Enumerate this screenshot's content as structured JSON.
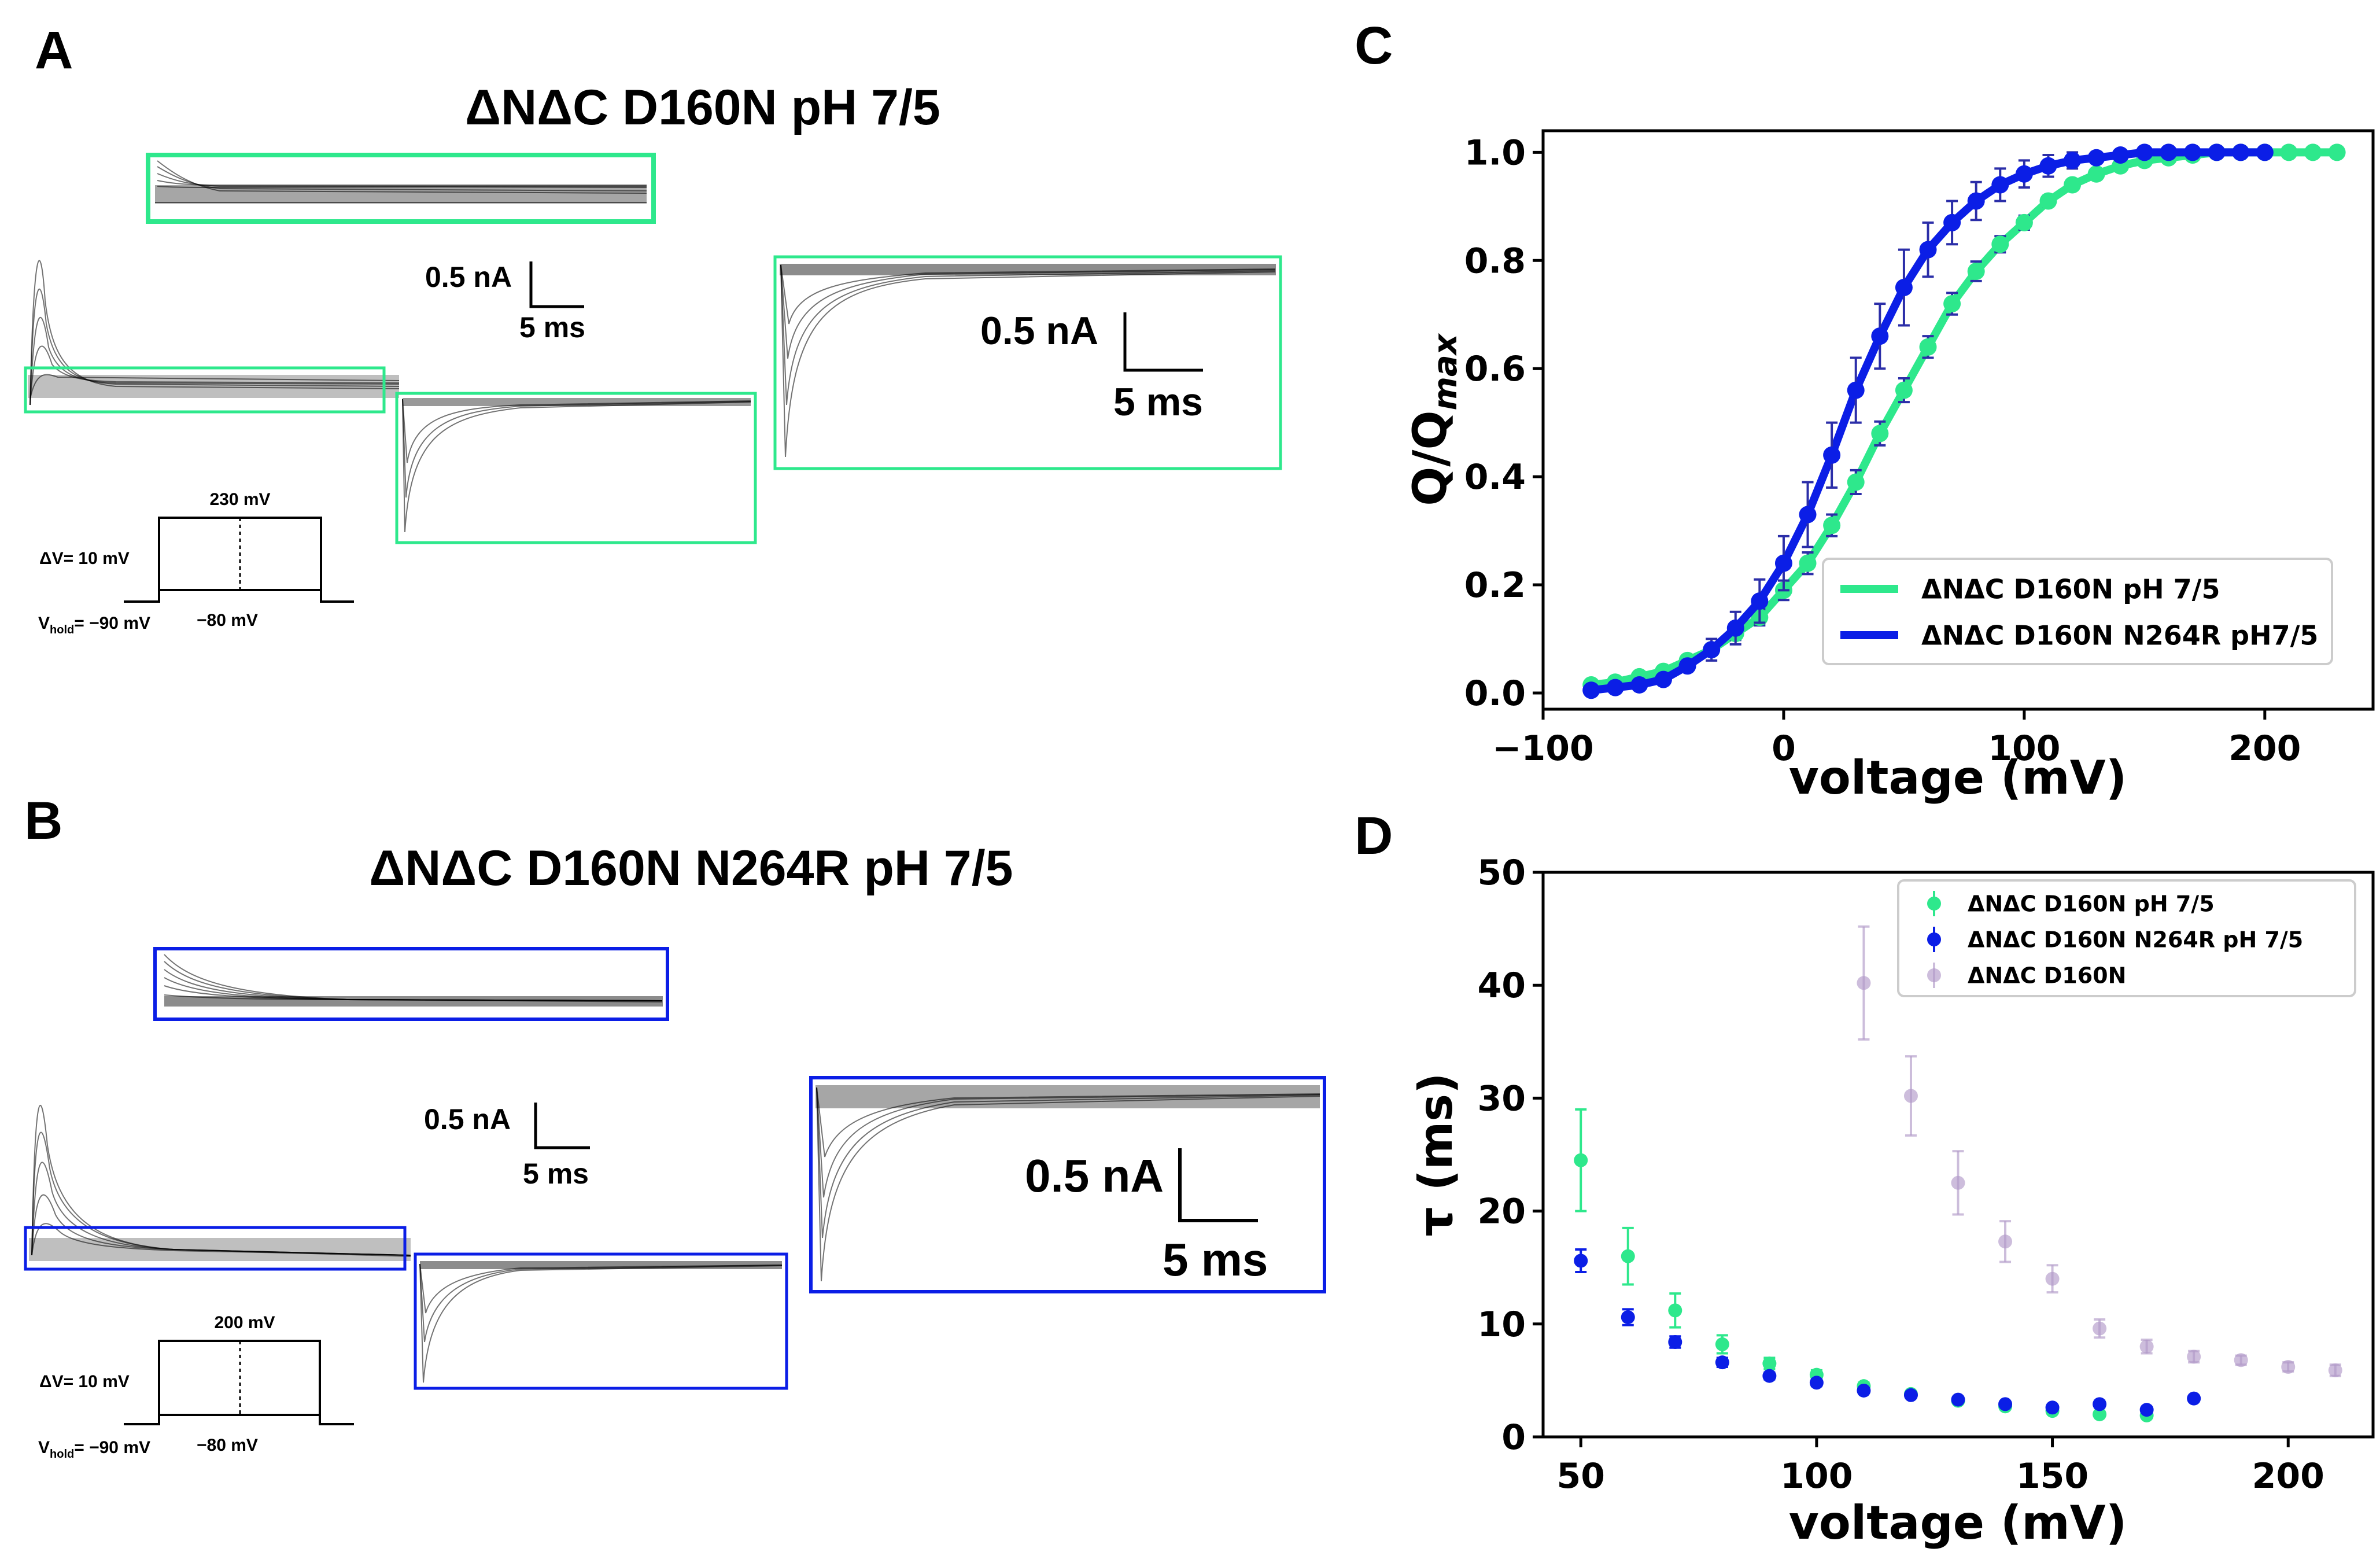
{
  "panel_labels": [
    "A",
    "B",
    "C",
    "D"
  ],
  "colors": {
    "green": "#2ee88c",
    "blue": "#0b1ee6",
    "purple": "#b29ac9",
    "black": "#000000"
  },
  "panel_a": {
    "title": "ΔNΔC D160N pH 7/5",
    "scale_small": {
      "current": "0.5 nA",
      "time": "5 ms"
    },
    "scale_large": {
      "current": "0.5 nA",
      "time": "5 ms"
    },
    "protocol": {
      "top": "230 mV",
      "step": "ΔV= 10 mV",
      "hold": "V",
      "hold_sub": "hold",
      "hold_val": "= −90 mV",
      "post": "−80 mV"
    }
  },
  "panel_b": {
    "title": "ΔNΔC D160N N264R pH 7/5",
    "scale_small": {
      "current": "0.5 nA",
      "time": "5 ms"
    },
    "scale_large": {
      "current": "0.5 nA",
      "time": "5 ms"
    },
    "protocol": {
      "top": "200 mV",
      "step": "ΔV= 10 mV",
      "hold": "V",
      "hold_sub": "hold",
      "hold_val": "= −90 mV",
      "post": "−80 mV"
    }
  },
  "chart_data": [
    {
      "panel": "C",
      "type": "line",
      "title": "",
      "xlabel": "voltage (mV)",
      "ylabel": "Q/Q",
      "ylabel_sub": "max",
      "xlim": [
        -100,
        245
      ],
      "ylim": [
        -0.03,
        1.04
      ],
      "xticks": [
        -100,
        0,
        100,
        200
      ],
      "xtick_labels": [
        "−100",
        "0",
        "100",
        "200"
      ],
      "yticks": [
        0.0,
        0.2,
        0.4,
        0.6,
        0.8,
        1.0
      ],
      "ytick_labels": [
        "0.0",
        "0.2",
        "0.4",
        "0.6",
        "0.8",
        "1.0"
      ],
      "legend": "lower-right",
      "series": [
        {
          "name": "ΔNΔC D160N pH 7/5",
          "color": "#2ee88c",
          "x": [
            -80,
            -70,
            -60,
            -50,
            -40,
            -30,
            -20,
            -10,
            0,
            10,
            20,
            30,
            40,
            50,
            60,
            70,
            80,
            90,
            100,
            110,
            120,
            130,
            140,
            150,
            160,
            170,
            180,
            190,
            200,
            210,
            220,
            230
          ],
          "y": [
            0.015,
            0.02,
            0.03,
            0.04,
            0.06,
            0.08,
            0.11,
            0.14,
            0.19,
            0.24,
            0.31,
            0.39,
            0.48,
            0.56,
            0.64,
            0.72,
            0.78,
            0.83,
            0.87,
            0.91,
            0.94,
            0.96,
            0.975,
            0.985,
            0.99,
            0.995,
            1.0,
            1.0,
            1.0,
            1.0,
            1.0,
            1.0
          ],
          "err": [
            0.005,
            0.005,
            0.005,
            0.007,
            0.008,
            0.01,
            0.012,
            0.015,
            0.018,
            0.02,
            0.02,
            0.022,
            0.022,
            0.022,
            0.02,
            0.02,
            0.018,
            0.015,
            0.013,
            0.01,
            0.008,
            0.006,
            0.005,
            0.004,
            0.003,
            0.002,
            0.002,
            0.001,
            0.001,
            0.001,
            0.001,
            0.001
          ]
        },
        {
          "name": "ΔNΔC D160N N264R pH7/5",
          "color": "#0b1ee6",
          "x": [
            -80,
            -70,
            -60,
            -50,
            -40,
            -30,
            -20,
            -10,
            0,
            10,
            20,
            30,
            40,
            50,
            60,
            70,
            80,
            90,
            100,
            110,
            120,
            130,
            140,
            150,
            160,
            170,
            180,
            190,
            200
          ],
          "y": [
            0.005,
            0.01,
            0.015,
            0.025,
            0.05,
            0.08,
            0.12,
            0.17,
            0.24,
            0.33,
            0.44,
            0.56,
            0.66,
            0.75,
            0.82,
            0.87,
            0.91,
            0.94,
            0.96,
            0.975,
            0.985,
            0.99,
            0.995,
            1.0,
            1.0,
            1.0,
            1.0,
            1.0,
            1.0
          ],
          "err": [
            0.005,
            0.005,
            0.007,
            0.008,
            0.01,
            0.02,
            0.03,
            0.04,
            0.05,
            0.06,
            0.06,
            0.06,
            0.06,
            0.07,
            0.05,
            0.04,
            0.035,
            0.03,
            0.025,
            0.02,
            0.015,
            0.01,
            0.008,
            0.005,
            0.004,
            0.003,
            0.002,
            0.001,
            0.001
          ]
        }
      ]
    },
    {
      "panel": "D",
      "type": "scatter",
      "title": "",
      "xlabel": "voltage (mV)",
      "ylabel": "τ (ms)",
      "xlim": [
        42,
        218
      ],
      "ylim": [
        0,
        50
      ],
      "xticks": [
        50,
        100,
        150,
        200
      ],
      "xtick_labels": [
        "50",
        "100",
        "150",
        "200"
      ],
      "yticks": [
        0,
        10,
        20,
        30,
        40,
        50
      ],
      "ytick_labels": [
        "0",
        "10",
        "20",
        "30",
        "40",
        "50"
      ],
      "legend": "top-right",
      "series": [
        {
          "name": "ΔNΔC D160N pH 7/5",
          "color": "#2ee88c",
          "x": [
            50,
            60,
            70,
            80,
            90,
            100,
            110,
            120,
            130,
            140,
            150,
            160,
            170
          ],
          "y": [
            24.5,
            16.0,
            11.2,
            8.2,
            6.5,
            5.5,
            4.5,
            3.8,
            3.2,
            2.7,
            2.3,
            2.0,
            1.9
          ],
          "err": [
            4.5,
            2.5,
            1.5,
            0.8,
            0.5,
            0.4,
            0.3,
            0.2,
            0.2,
            0.2,
            0.2,
            0.2,
            0.2
          ]
        },
        {
          "name": "ΔNΔC D160N N264R pH 7/5",
          "color": "#0b1ee6",
          "x": [
            50,
            60,
            70,
            80,
            90,
            100,
            110,
            120,
            130,
            140,
            150,
            160,
            170,
            180
          ],
          "y": [
            15.6,
            10.6,
            8.4,
            6.6,
            5.4,
            4.8,
            4.1,
            3.7,
            3.3,
            2.9,
            2.6,
            2.9,
            2.4,
            3.4
          ],
          "err": [
            1.0,
            0.7,
            0.5,
            0.4,
            0.3,
            0.3,
            0.2,
            0.2,
            0.2,
            0.2,
            0.2,
            0.3,
            0.2,
            0.2
          ]
        },
        {
          "name": "ΔNΔC D160N",
          "color": "#b29ac9",
          "x": [
            110,
            120,
            130,
            140,
            150,
            160,
            170,
            180,
            190,
            200,
            210
          ],
          "y": [
            40.2,
            30.2,
            22.5,
            17.3,
            14.0,
            9.6,
            8.0,
            7.1,
            6.8,
            6.2,
            5.9
          ],
          "err": [
            5.0,
            3.5,
            2.8,
            1.8,
            1.2,
            0.8,
            0.6,
            0.5,
            0.4,
            0.4,
            0.5
          ]
        }
      ]
    }
  ]
}
